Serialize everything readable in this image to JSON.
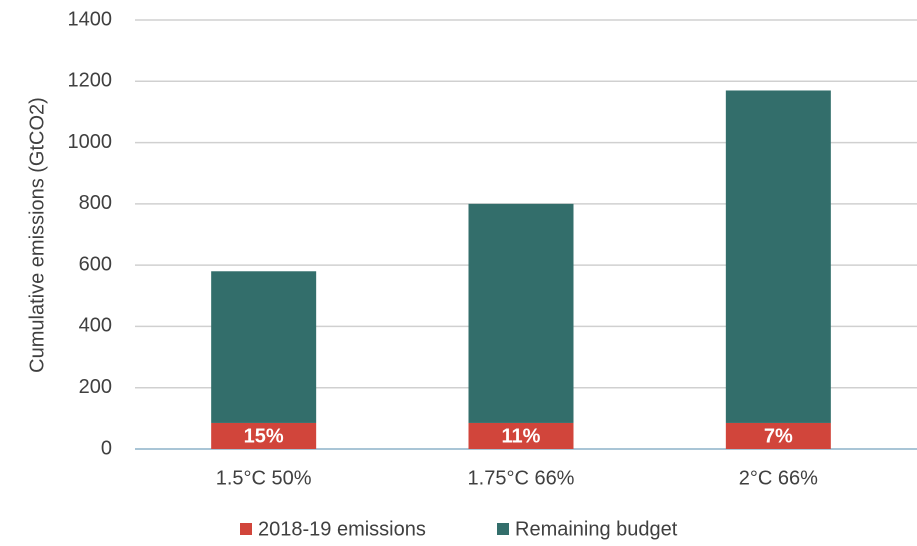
{
  "chart_data": {
    "type": "stacked_bar",
    "y_label": "Cumulative emissions (GtCO2)",
    "categories": [
      "1.5°C 50%",
      "1.75°C 66%",
      "2°C 66%"
    ],
    "series": [
      {
        "name": "2018-19 emissions",
        "color": "#d1453b",
        "values": [
          85,
          85,
          85
        ]
      },
      {
        "name": "Remaining budget",
        "color": "#336e6b",
        "values": [
          495,
          715,
          1085
        ]
      }
    ],
    "annotations": [
      "15%",
      "11%",
      "7%"
    ],
    "ylim": [
      0,
      1400
    ],
    "yticks": [
      0,
      200,
      400,
      600,
      800,
      1000,
      1200,
      1400
    ],
    "grid": true,
    "legend": "bottom"
  }
}
